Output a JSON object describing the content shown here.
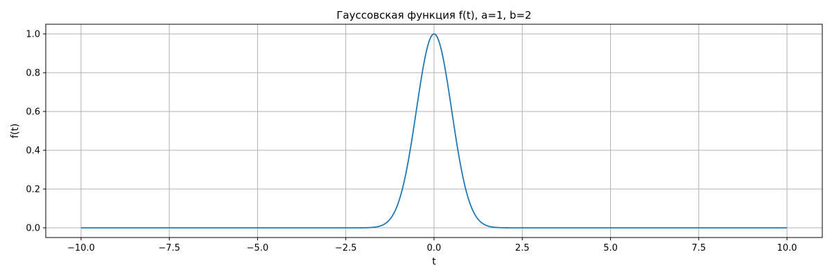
{
  "chart_data": {
    "type": "line",
    "title": "Гауссовская функция f(t), a=1, b=2",
    "xlabel": "t",
    "ylabel": "f(t)",
    "function": "exp(-b*t^2), a=1, b=2",
    "params": {
      "a": 1,
      "b": 2
    },
    "x_range": [
      -10,
      10
    ],
    "xlim": [
      -11,
      11
    ],
    "ylim": [
      -0.05,
      1.05
    ],
    "grid": true,
    "line_color": "#1f77b4",
    "x_ticks": [
      -10.0,
      -7.5,
      -5.0,
      -2.5,
      0.0,
      2.5,
      5.0,
      7.5,
      10.0
    ],
    "x_tick_labels": [
      "−10.0",
      "−7.5",
      "−5.0",
      "−2.5",
      "0.0",
      "2.5",
      "5.0",
      "7.5",
      "10.0"
    ],
    "y_ticks": [
      0.0,
      0.2,
      0.4,
      0.6,
      0.8,
      1.0
    ],
    "y_tick_labels": [
      "0.0",
      "0.2",
      "0.4",
      "0.6",
      "0.8",
      "1.0"
    ],
    "series": [
      {
        "x": [
          -10,
          -3,
          -2.5,
          -2,
          -1.75,
          -1.5,
          -1.25,
          -1,
          -0.75,
          -0.5,
          -0.25,
          0,
          0.25,
          0.5,
          0.75,
          1,
          1.25,
          1.5,
          1.75,
          2,
          2.5,
          3,
          10
        ],
        "y": [
          0,
          0,
          0,
          0.0003,
          0.0022,
          0.0111,
          0.0439,
          0.1353,
          0.3247,
          0.6065,
          0.8825,
          1.0,
          0.8825,
          0.6065,
          0.3247,
          0.1353,
          0.0439,
          0.0111,
          0.0022,
          0.0003,
          0,
          0,
          0
        ]
      }
    ]
  }
}
